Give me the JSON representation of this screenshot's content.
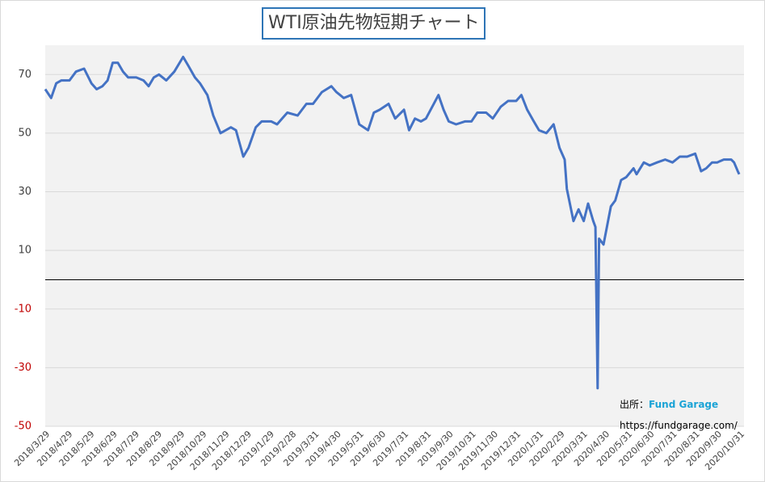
{
  "chart_data": {
    "type": "line",
    "title": "WTI原油先物短期チャート",
    "source_label": "出所：",
    "source_name": "Fund Garage",
    "source_url": "https://fundgarage.com/",
    "color": "#4472c4",
    "negative_tick_color": "#c00000",
    "grid": true,
    "ylim": [
      -50,
      80
    ],
    "yticks": [
      -50,
      -30,
      -10,
      10,
      30,
      50,
      70
    ],
    "xlim": [
      "2018/3/29",
      "2020/10/31"
    ],
    "xticks": [
      "2018/3/29",
      "2018/4/29",
      "2018/5/29",
      "2018/6/29",
      "2018/7/29",
      "2018/8/29",
      "2018/9/29",
      "2018/10/29",
      "2018/11/29",
      "2018/12/29",
      "2019/1/29",
      "2019/2/28",
      "2019/3/31",
      "2019/4/30",
      "2019/5/31",
      "2019/6/30",
      "2019/7/31",
      "2019/8/31",
      "2019/9/30",
      "2019/10/31",
      "2019/11/30",
      "2019/12/31",
      "2020/1/31",
      "2020/2/29",
      "2020/3/31",
      "2020/4/30",
      "2020/5/31",
      "2020/6/30",
      "2020/7/31",
      "2020/8/31",
      "2020/9/30",
      "2020/10/31"
    ],
    "x": [
      "2018/3/29",
      "2018/4/6",
      "2018/4/13",
      "2018/4/20",
      "2018/5/1",
      "2018/5/10",
      "2018/5/21",
      "2018/5/31",
      "2018/6/7",
      "2018/6/15",
      "2018/6/22",
      "2018/6/29",
      "2018/7/6",
      "2018/7/13",
      "2018/7/20",
      "2018/7/31",
      "2018/8/10",
      "2018/8/17",
      "2018/8/24",
      "2018/8/31",
      "2018/9/10",
      "2018/9/21",
      "2018/10/3",
      "2018/10/10",
      "2018/10/19",
      "2018/10/26",
      "2018/11/5",
      "2018/11/13",
      "2018/11/23",
      "2018/11/30",
      "2018/12/7",
      "2018/12/14",
      "2018/12/24",
      "2018/12/31",
      "2019/1/10",
      "2019/1/18",
      "2019/1/31",
      "2019/2/8",
      "2019/2/15",
      "2019/2/22",
      "2019/3/8",
      "2019/3/20",
      "2019/3/29",
      "2019/4/10",
      "2019/4/23",
      "2019/4/30",
      "2019/5/10",
      "2019/5/20",
      "2019/5/31",
      "2019/6/12",
      "2019/6/20",
      "2019/6/28",
      "2019/7/10",
      "2019/7/19",
      "2019/7/31",
      "2019/8/7",
      "2019/8/15",
      "2019/8/23",
      "2019/8/30",
      "2019/9/16",
      "2019/9/23",
      "2019/9/30",
      "2019/10/10",
      "2019/10/22",
      "2019/10/31",
      "2019/11/8",
      "2019/11/20",
      "2019/11/29",
      "2019/12/10",
      "2019/12/20",
      "2019/12/31",
      "2020/1/7",
      "2020/1/15",
      "2020/1/24",
      "2020/1/31",
      "2020/2/10",
      "2020/2/20",
      "2020/2/28",
      "2020/3/6",
      "2020/3/9",
      "2020/3/18",
      "2020/3/25",
      "2020/4/1",
      "2020/4/7",
      "2020/4/14",
      "2020/4/17",
      "2020/4/20",
      "2020/4/22",
      "2020/4/28",
      "2020/5/8",
      "2020/5/14",
      "2020/5/22",
      "2020/5/29",
      "2020/6/8",
      "2020/6/12",
      "2020/6/22",
      "2020/6/30",
      "2020/7/10",
      "2020/7/21",
      "2020/7/31",
      "2020/8/10",
      "2020/8/20",
      "2020/8/31",
      "2020/9/8",
      "2020/9/15",
      "2020/9/23",
      "2020/9/30",
      "2020/10/9",
      "2020/10/19",
      "2020/10/23",
      "2020/10/28",
      "2020/10/30"
    ],
    "values": [
      65,
      62,
      67,
      68,
      68,
      71,
      72,
      67,
      65,
      66,
      68,
      74,
      74,
      71,
      69,
      69,
      68,
      66,
      69,
      70,
      68,
      71,
      76,
      73,
      69,
      67,
      63,
      56,
      50,
      51,
      52,
      51,
      42,
      45,
      52,
      54,
      54,
      53,
      55,
      57,
      56,
      60,
      60,
      64,
      66,
      64,
      62,
      63,
      53,
      51,
      57,
      58,
      60,
      55,
      58,
      51,
      55,
      54,
      55,
      63,
      58,
      54,
      53,
      54,
      54,
      57,
      57,
      55,
      59,
      61,
      61,
      63,
      58,
      54,
      51,
      50,
      53,
      45,
      41,
      31,
      20,
      24,
      20,
      26,
      20,
      18,
      -37,
      14,
      12,
      25,
      27,
      34,
      35,
      38,
      36,
      40,
      39,
      40,
      41,
      40,
      42,
      42,
      43,
      37,
      38,
      40,
      40,
      41,
      41,
      40,
      37,
      36
    ]
  }
}
